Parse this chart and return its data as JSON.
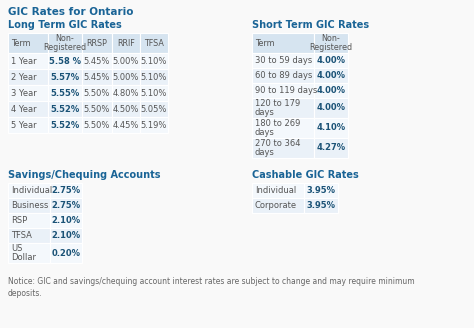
{
  "title": "GIC Rates for Ontario",
  "title_color": "#1a6496",
  "bg_color": "#f9f9f9",
  "section_title_color": "#1a6496",
  "table_header_bg": "#d6e4f0",
  "table_row_bg_even": "#eaf1f8",
  "table_row_bg_odd": "#f4f8fc",
  "table_text_color": "#555555",
  "bold_color": "#1a5276",
  "notice_color": "#666666",
  "long_term_title": "Long Term GIC Rates",
  "long_term_headers": [
    "Term",
    "Non-\nRegistered",
    "RRSP",
    "RRIF",
    "TFSA"
  ],
  "long_term_rows": [
    [
      "1 Year",
      "5.58 %",
      "5.45%",
      "5.00%",
      "5.10%"
    ],
    [
      "2 Year",
      "5.57%",
      "5.45%",
      "5.00%",
      "5.10%"
    ],
    [
      "3 Year",
      "5.55%",
      "5.50%",
      "4.80%",
      "5.10%"
    ],
    [
      "4 Year",
      "5.52%",
      "5.50%",
      "4.50%",
      "5.05%"
    ],
    [
      "5 Year",
      "5.52%",
      "5.50%",
      "4.45%",
      "5.19%"
    ]
  ],
  "short_term_title": "Short Term GIC Rates",
  "short_term_headers": [
    "Term",
    "Non-\nRegistered"
  ],
  "short_term_rows": [
    [
      "30 to 59 days",
      "4.00%"
    ],
    [
      "60 to 89 days",
      "4.00%"
    ],
    [
      "90 to 119 days",
      "4.00%"
    ],
    [
      "120 to 179\ndays",
      "4.00%"
    ],
    [
      "180 to 269\ndays",
      "4.10%"
    ],
    [
      "270 to 364\ndays",
      "4.27%"
    ]
  ],
  "savings_title": "Savings/Chequing Accounts",
  "savings_rows": [
    [
      "Individual",
      "2.75%"
    ],
    [
      "Business",
      "2.75%"
    ],
    [
      "RSP",
      "2.10%"
    ],
    [
      "TFSA",
      "2.10%"
    ],
    [
      "US\nDollar",
      "0.20%"
    ]
  ],
  "cashable_title": "Cashable GIC Rates",
  "cashable_rows": [
    [
      "Individual",
      "3.95%"
    ],
    [
      "Corporate",
      "3.95%"
    ]
  ],
  "notice": "Notice: GIC and savings/chequing account interest rates are subject to change and may require minimum\ndeposits."
}
